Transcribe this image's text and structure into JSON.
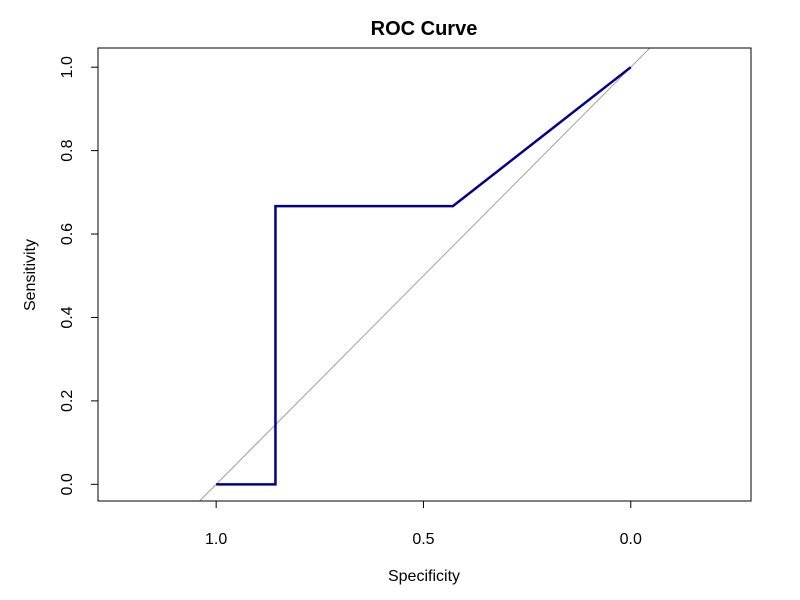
{
  "chart_data": {
    "type": "line",
    "title": "ROC Curve",
    "xlabel": "Specificity",
    "ylabel": "Sensitivity",
    "xlim": [
      1.285,
      -0.29
    ],
    "ylim": [
      -0.04,
      1.046
    ],
    "x_reversed": true,
    "grid": false,
    "xticks": [
      1.0,
      0.5,
      0.0
    ],
    "xtick_labels": [
      "1.0",
      "0.5",
      "0.0"
    ],
    "yticks": [
      0.0,
      0.2,
      0.4,
      0.6,
      0.8,
      1.0
    ],
    "ytick_labels": [
      "0.0",
      "0.2",
      "0.4",
      "0.6",
      "0.8",
      "1.0"
    ],
    "series": [
      {
        "name": "ROC",
        "color": "#00008B",
        "specificity": [
          1.0,
          0.857,
          0.857,
          0.429,
          0.0
        ],
        "sensitivity": [
          0.0,
          0.0,
          0.667,
          0.667,
          1.0
        ]
      }
    ],
    "reference_line": {
      "name": "chance diagonal",
      "color": "#a0a0a0",
      "intercept": 1,
      "slope": -1
    }
  }
}
